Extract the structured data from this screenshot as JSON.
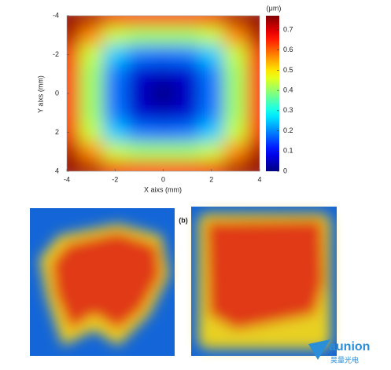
{
  "chart_data": {
    "type": "heatmap",
    "x_label": "X aixs (mm)",
    "y_label": "Y aixs (mm)",
    "x": [
      -4,
      -3,
      -2,
      -1,
      0,
      1,
      2,
      3,
      4
    ],
    "y": [
      -4,
      -3,
      -2,
      -1,
      0,
      1,
      2,
      3,
      4
    ],
    "z": [
      [
        0.76,
        0.74,
        0.68,
        0.66,
        0.65,
        0.66,
        0.68,
        0.74,
        0.76
      ],
      [
        0.74,
        0.57,
        0.44,
        0.41,
        0.41,
        0.41,
        0.44,
        0.57,
        0.74
      ],
      [
        0.68,
        0.44,
        0.25,
        0.19,
        0.18,
        0.19,
        0.25,
        0.44,
        0.68
      ],
      [
        0.66,
        0.41,
        0.19,
        0.06,
        0.05,
        0.06,
        0.19,
        0.41,
        0.66
      ],
      [
        0.65,
        0.41,
        0.18,
        0.05,
        0.0,
        0.05,
        0.18,
        0.41,
        0.65
      ],
      [
        0.66,
        0.41,
        0.19,
        0.06,
        0.05,
        0.06,
        0.19,
        0.41,
        0.66
      ],
      [
        0.68,
        0.44,
        0.25,
        0.19,
        0.18,
        0.19,
        0.25,
        0.44,
        0.68
      ],
      [
        0.74,
        0.57,
        0.44,
        0.41,
        0.41,
        0.41,
        0.44,
        0.57,
        0.74
      ],
      [
        0.76,
        0.74,
        0.68,
        0.66,
        0.65,
        0.66,
        0.68,
        0.74,
        0.76
      ]
    ],
    "xlim": [
      -4,
      4
    ],
    "ylim": [
      -4,
      4
    ],
    "y_inverted": true,
    "xticks": [
      -4,
      -2,
      0,
      2,
      4
    ],
    "yticks": [
      -4,
      -2,
      0,
      2,
      4
    ],
    "colormap": "jet",
    "clim": [
      0,
      0.77
    ],
    "colorbar_label": "(μm)",
    "colorbar_ticks": [
      0,
      0.1,
      0.2,
      0.3,
      0.4,
      0.5,
      0.6,
      0.7
    ]
  },
  "figure_label": "(b)",
  "watermark": {
    "brand": "aunion",
    "subtitle": "昊量光电"
  }
}
